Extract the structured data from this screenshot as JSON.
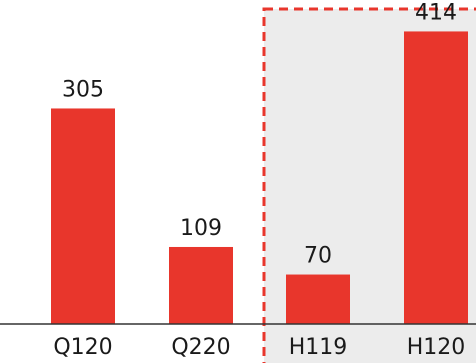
{
  "chart_data": {
    "type": "bar",
    "categories": [
      "Q120",
      "Q220",
      "H119",
      "H120"
    ],
    "values": [
      305,
      109,
      70,
      414
    ],
    "highlighted_categories": [
      "H119",
      "H120"
    ],
    "title": "",
    "xlabel": "",
    "ylabel": "",
    "ylim": [
      0,
      450
    ],
    "grid": false,
    "legend": "none",
    "colors": {
      "bar": "#e8362c",
      "highlight_fill": "#ececec",
      "highlight_border": "#e8362c",
      "axis": "#333333",
      "text": "#1a1a1a"
    }
  }
}
